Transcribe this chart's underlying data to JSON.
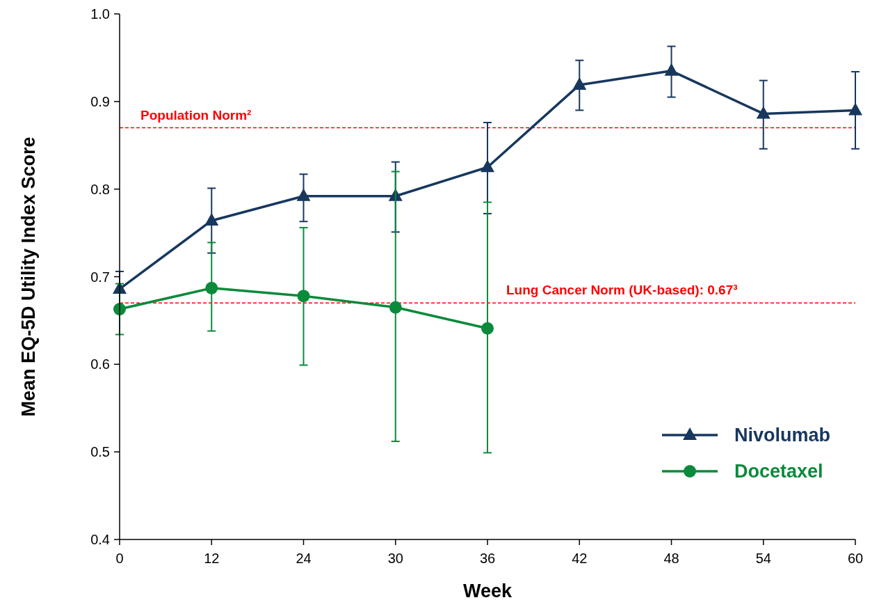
{
  "chart_data": {
    "type": "line",
    "xlabel": "Week",
    "ylabel": "Mean EQ-5D Utility Index Score",
    "categories": [
      "0",
      "12",
      "24",
      "30",
      "36",
      "42",
      "48",
      "54",
      "60"
    ],
    "ylim": [
      0.4,
      1.0
    ],
    "yticks": [
      {
        "value": 0.4,
        "label": "0.4"
      },
      {
        "value": 0.5,
        "label": "0.5"
      },
      {
        "value": 0.6,
        "label": "0.6"
      },
      {
        "value": 0.7,
        "label": "0.7"
      },
      {
        "value": 0.8,
        "label": "0.8"
      },
      {
        "value": 0.9,
        "label": "0.9"
      },
      {
        "value": 1.0,
        "label": "1.0"
      }
    ],
    "grid": false,
    "legend": "bottom right",
    "series": [
      {
        "name": "Nivolumab",
        "color": "#17375e",
        "marker": "triangle",
        "values": [
          0.686,
          0.764,
          0.792,
          0.792,
          0.825,
          0.919,
          0.935,
          0.886,
          0.89
        ],
        "errors": [
          [
            0.666,
            0.706
          ],
          [
            0.727,
            0.801
          ],
          [
            0.763,
            0.817
          ],
          [
            0.751,
            0.831
          ],
          [
            0.772,
            0.876
          ],
          [
            0.89,
            0.947
          ],
          [
            0.905,
            0.963
          ],
          [
            0.846,
            0.924
          ],
          [
            0.846,
            0.934
          ]
        ]
      },
      {
        "name": "Docetaxel",
        "color": "#0a8a3a",
        "marker": "circle",
        "values": [
          0.663,
          0.687,
          0.678,
          0.665,
          0.641,
          null,
          null,
          null,
          null
        ],
        "errors": [
          [
            0.634,
            0.692
          ],
          [
            0.638,
            0.739
          ],
          [
            0.599,
            0.756
          ],
          [
            0.512,
            0.82
          ],
          [
            0.499,
            0.785
          ],
          null,
          null,
          null,
          null
        ]
      }
    ],
    "ref_lines": [
      {
        "axis": "y",
        "value": 0.87,
        "label": "Population Norm²",
        "color": "#ff0000",
        "line_style": "dashed"
      },
      {
        "axis": "y",
        "value": 0.67,
        "label": "Lung Cancer Norm (UK-based): 0.67³",
        "color": "#ff0000",
        "line_style": "dashed"
      }
    ]
  }
}
